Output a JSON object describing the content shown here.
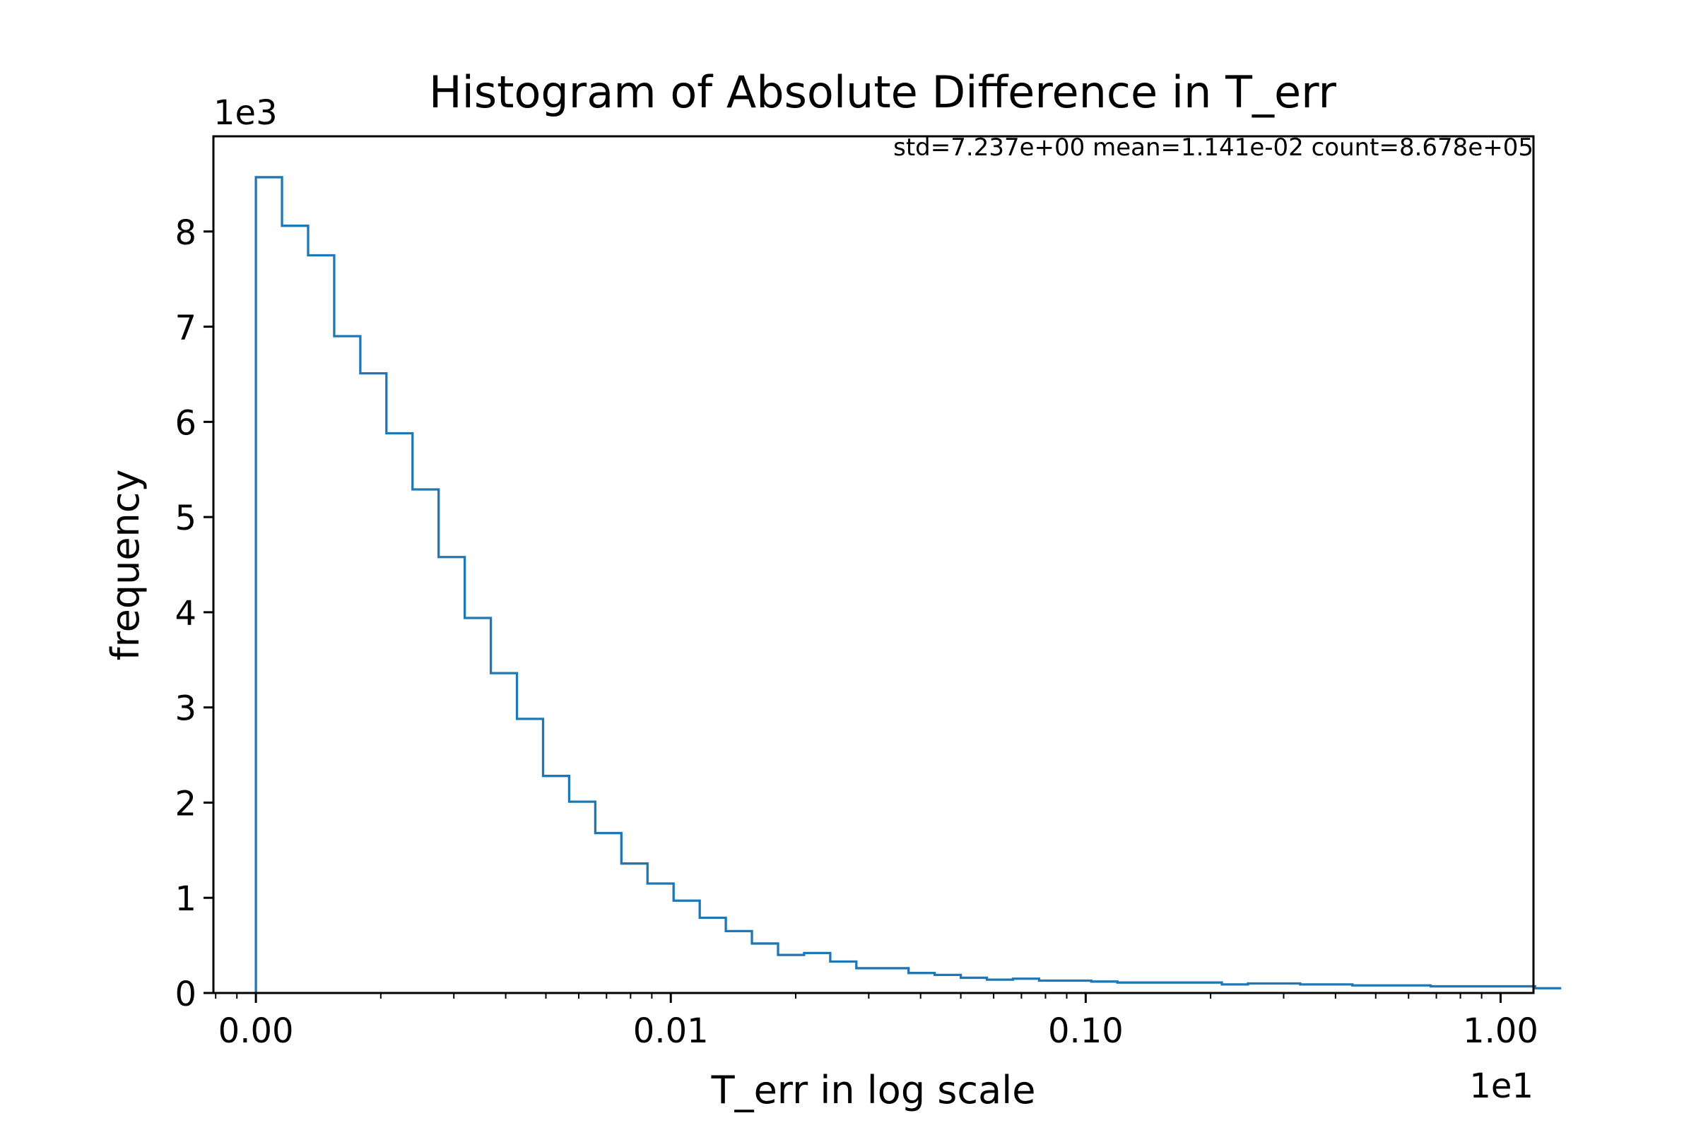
{
  "chart_data": {
    "type": "histogram",
    "title": "Histogram of Absolute Difference in T_err",
    "xlabel": "T_err in log scale",
    "ylabel": "frequency",
    "x_scale": "log",
    "x_offset_text": "1e1",
    "y_offset_text": "1e3",
    "stats_text": "std=7.237e+00 mean=1.141e-02 count=8.678e+05",
    "x_ticks": [
      {
        "value": 0.001,
        "label": "0.00"
      },
      {
        "value": 0.01,
        "label": "0.01"
      },
      {
        "value": 0.1,
        "label": "0.10"
      },
      {
        "value": 1.0,
        "label": "1.00"
      }
    ],
    "y_ticks": [
      0,
      1,
      2,
      3,
      4,
      5,
      6,
      7,
      8
    ],
    "xlim": [
      0.00079,
      1.2
    ],
    "ylim": [
      0,
      9
    ],
    "grid": false,
    "color": "#1f77b4",
    "bin_start": 0.001,
    "bin_end": 1.4,
    "counts": [
      8.57,
      8.06,
      7.75,
      6.9,
      6.51,
      5.88,
      5.29,
      4.58,
      3.94,
      3.36,
      2.88,
      2.28,
      2.01,
      1.68,
      1.36,
      1.15,
      0.97,
      0.79,
      0.65,
      0.52,
      0.4,
      0.42,
      0.33,
      0.26,
      0.26,
      0.21,
      0.19,
      0.16,
      0.14,
      0.15,
      0.13,
      0.13,
      0.12,
      0.11,
      0.11,
      0.11,
      0.11,
      0.09,
      0.1,
      0.1,
      0.09,
      0.09,
      0.08,
      0.08,
      0.08,
      0.07,
      0.07,
      0.07,
      0.07,
      0.05
    ]
  }
}
